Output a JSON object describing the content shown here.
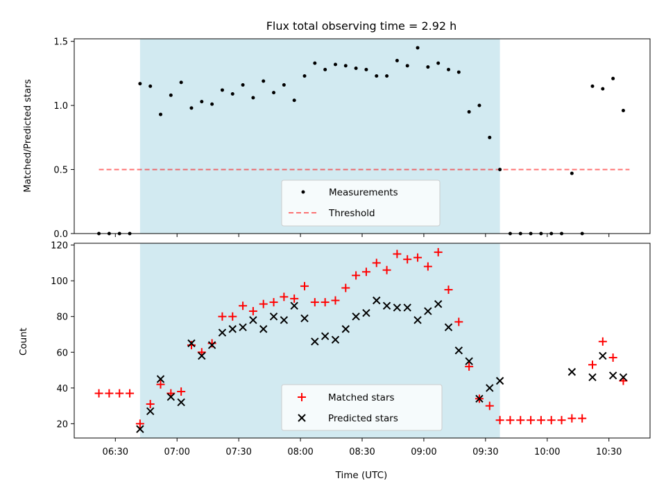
{
  "title": "Flux total observing time = 2.92 h",
  "colors": {
    "band": "#add8e6",
    "measurement": "#000000",
    "threshold": "#ff0000",
    "matched": "#ff0000",
    "predicted": "#000000"
  },
  "chart_data": [
    {
      "type": "scatter",
      "ylabel": "Matched/Predicted stars",
      "ylim": [
        0,
        1.52
      ],
      "yticks": [
        0.0,
        0.5,
        1.0,
        1.5
      ],
      "ytick_labels": [
        "0.0",
        "0.5",
        "1.0",
        "1.5"
      ],
      "xlim": [
        "06:10",
        "10:50"
      ],
      "xticks": [
        "06:30",
        "07:00",
        "07:30",
        "08:00",
        "08:30",
        "09:00",
        "09:30",
        "10:00",
        "10:30"
      ],
      "shaded_span": [
        "06:42",
        "09:37"
      ],
      "threshold": {
        "y": 0.5,
        "x_range": [
          "06:22",
          "10:40"
        ]
      },
      "legend": {
        "position": "bottom-center",
        "entries": [
          "Measurements",
          "Threshold"
        ]
      },
      "series": [
        {
          "name": "Measurements",
          "x": [
            "06:22",
            "06:27",
            "06:32",
            "06:37",
            "06:42",
            "06:47",
            "06:52",
            "06:57",
            "07:02",
            "07:07",
            "07:12",
            "07:17",
            "07:22",
            "07:27",
            "07:32",
            "07:37",
            "07:42",
            "07:47",
            "07:52",
            "07:57",
            "08:02",
            "08:07",
            "08:12",
            "08:17",
            "08:22",
            "08:27",
            "08:32",
            "08:37",
            "08:42",
            "08:47",
            "08:52",
            "08:57",
            "09:02",
            "09:07",
            "09:12",
            "09:17",
            "09:22",
            "09:27",
            "09:32",
            "09:37",
            "09:42",
            "09:47",
            "09:52",
            "09:57",
            "10:02",
            "10:07",
            "10:12",
            "10:17",
            "10:22",
            "10:27",
            "10:32",
            "10:37"
          ],
          "y": [
            0,
            0,
            0,
            0,
            1.17,
            1.15,
            0.93,
            1.08,
            1.18,
            0.98,
            1.03,
            1.01,
            1.12,
            1.09,
            1.16,
            1.06,
            1.19,
            1.1,
            1.16,
            1.04,
            1.23,
            1.33,
            1.28,
            1.32,
            1.31,
            1.29,
            1.28,
            1.23,
            1.23,
            1.35,
            1.31,
            1.45,
            1.3,
            1.33,
            1.28,
            1.26,
            0.95,
            1.0,
            0.75,
            0.5,
            0,
            0,
            0,
            0,
            0,
            0,
            0.47,
            0,
            1.15,
            1.13,
            1.21,
            0.96
          ]
        }
      ]
    },
    {
      "type": "scatter",
      "xlabel": "Time (UTC)",
      "ylabel": "Count",
      "ylim": [
        12,
        121
      ],
      "yticks": [
        20,
        40,
        60,
        80,
        100,
        120
      ],
      "ytick_labels": [
        "20",
        "40",
        "60",
        "80",
        "100",
        "120"
      ],
      "xlim": [
        "06:10",
        "10:50"
      ],
      "xticks": [
        "06:30",
        "07:00",
        "07:30",
        "08:00",
        "08:30",
        "09:00",
        "09:30",
        "10:00",
        "10:30"
      ],
      "xtick_labels": [
        "06:30",
        "07:00",
        "07:30",
        "08:00",
        "08:30",
        "09:00",
        "09:30",
        "10:00",
        "10:30"
      ],
      "shaded_span": [
        "06:42",
        "09:37"
      ],
      "legend": {
        "position": "bottom-center",
        "entries": [
          "Matched stars",
          "Predicted stars"
        ]
      },
      "series": [
        {
          "name": "Matched stars",
          "marker": "+",
          "x": [
            "06:22",
            "06:27",
            "06:32",
            "06:37",
            "06:42",
            "06:47",
            "06:52",
            "06:57",
            "07:02",
            "07:07",
            "07:12",
            "07:17",
            "07:22",
            "07:27",
            "07:32",
            "07:37",
            "07:42",
            "07:47",
            "07:52",
            "07:57",
            "08:02",
            "08:07",
            "08:12",
            "08:17",
            "08:22",
            "08:27",
            "08:32",
            "08:37",
            "08:42",
            "08:47",
            "08:52",
            "08:57",
            "09:02",
            "09:07",
            "09:12",
            "09:17",
            "09:22",
            "09:27",
            "09:32",
            "09:37",
            "09:42",
            "09:47",
            "09:52",
            "09:57",
            "10:02",
            "10:07",
            "10:12",
            "10:17",
            "10:22",
            "10:27",
            "10:32",
            "10:37"
          ],
          "y": [
            37,
            37,
            37,
            37,
            20,
            31,
            42,
            37,
            38,
            64,
            60,
            65,
            80,
            80,
            86,
            83,
            87,
            88,
            91,
            90,
            97,
            88,
            88,
            89,
            96,
            103,
            105,
            110,
            106,
            115,
            112,
            113,
            108,
            116,
            95,
            77,
            52,
            34,
            30,
            22,
            22,
            22,
            22,
            22,
            22,
            22,
            23,
            23,
            53,
            66,
            57,
            44
          ]
        },
        {
          "name": "Predicted stars",
          "marker": "x",
          "x": [
            "06:42",
            "06:47",
            "06:52",
            "06:57",
            "07:02",
            "07:07",
            "07:12",
            "07:17",
            "07:22",
            "07:27",
            "07:32",
            "07:37",
            "07:42",
            "07:47",
            "07:52",
            "07:57",
            "08:02",
            "08:07",
            "08:12",
            "08:17",
            "08:22",
            "08:27",
            "08:32",
            "08:37",
            "08:42",
            "08:47",
            "08:52",
            "08:57",
            "09:02",
            "09:07",
            "09:12",
            "09:17",
            "09:22",
            "09:27",
            "09:32",
            "09:37",
            "10:12",
            "10:22",
            "10:27",
            "10:32",
            "10:37"
          ],
          "y": [
            17,
            27,
            45,
            35,
            32,
            65,
            58,
            64,
            71,
            73,
            74,
            78,
            73,
            80,
            78,
            86,
            79,
            66,
            69,
            67,
            73,
            80,
            82,
            89,
            86,
            85,
            85,
            78,
            83,
            87,
            74,
            61,
            55,
            34,
            40,
            44,
            49,
            46,
            58,
            47,
            46
          ]
        }
      ]
    }
  ]
}
